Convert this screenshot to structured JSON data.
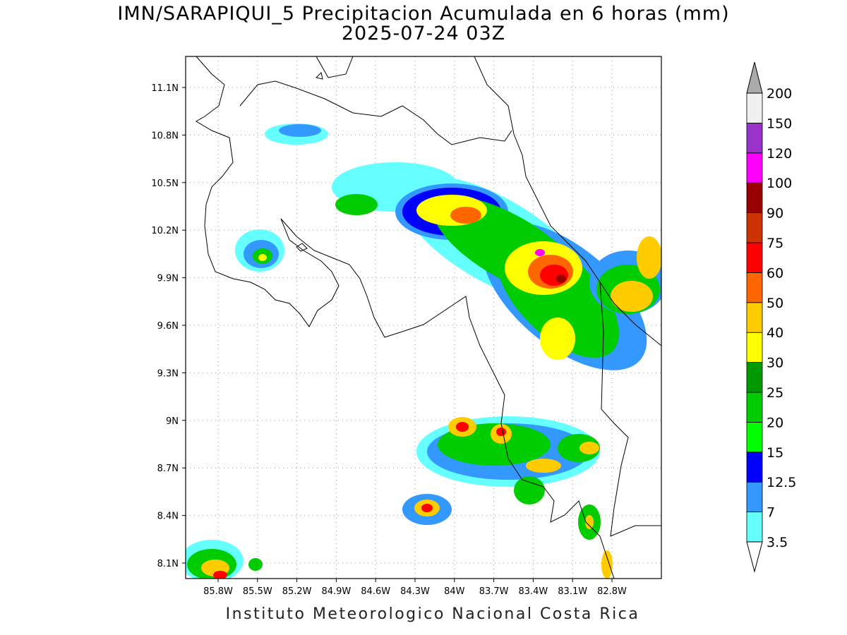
{
  "title": "IMN/SARAPIQUI_5 Precipitacion Acumulada en 6 horas (mm)",
  "subtitle": "2025-07-24 03Z",
  "lat_labels": [
    "11.1N",
    "10.8N",
    "10.5N",
    "10.2N",
    "9.9N",
    "9.6N",
    "9.3N",
    "9N",
    "8.7N",
    "8.4N",
    "8.1N"
  ],
  "lon_labels": [
    "85.8W",
    "85.5W",
    "85.2W",
    "84.9W",
    "84.6W",
    "84.3W",
    "84W",
    "83.7W",
    "83.4W",
    "83.1W",
    "82.8W"
  ],
  "colorbar": {
    "levels": [
      3.5,
      7,
      12.5,
      15,
      20,
      25,
      30,
      40,
      50,
      60,
      75,
      90,
      100,
      120,
      150,
      200
    ],
    "band_colors": [
      "#66ffff",
      "#3399ff",
      "#0000ff",
      "#00ff00",
      "#00cc00",
      "#009900",
      "#ffff00",
      "#ffcc00",
      "#ff6600",
      "#ff0000",
      "#cc3300",
      "#990000",
      "#ff00ff",
      "#9933cc",
      "#f0f0f0"
    ],
    "under_color": "#ffffff",
    "over_color": "#aaaaaa"
  },
  "footer": "Instituto Meteorologico Nacional Costa Rica"
}
